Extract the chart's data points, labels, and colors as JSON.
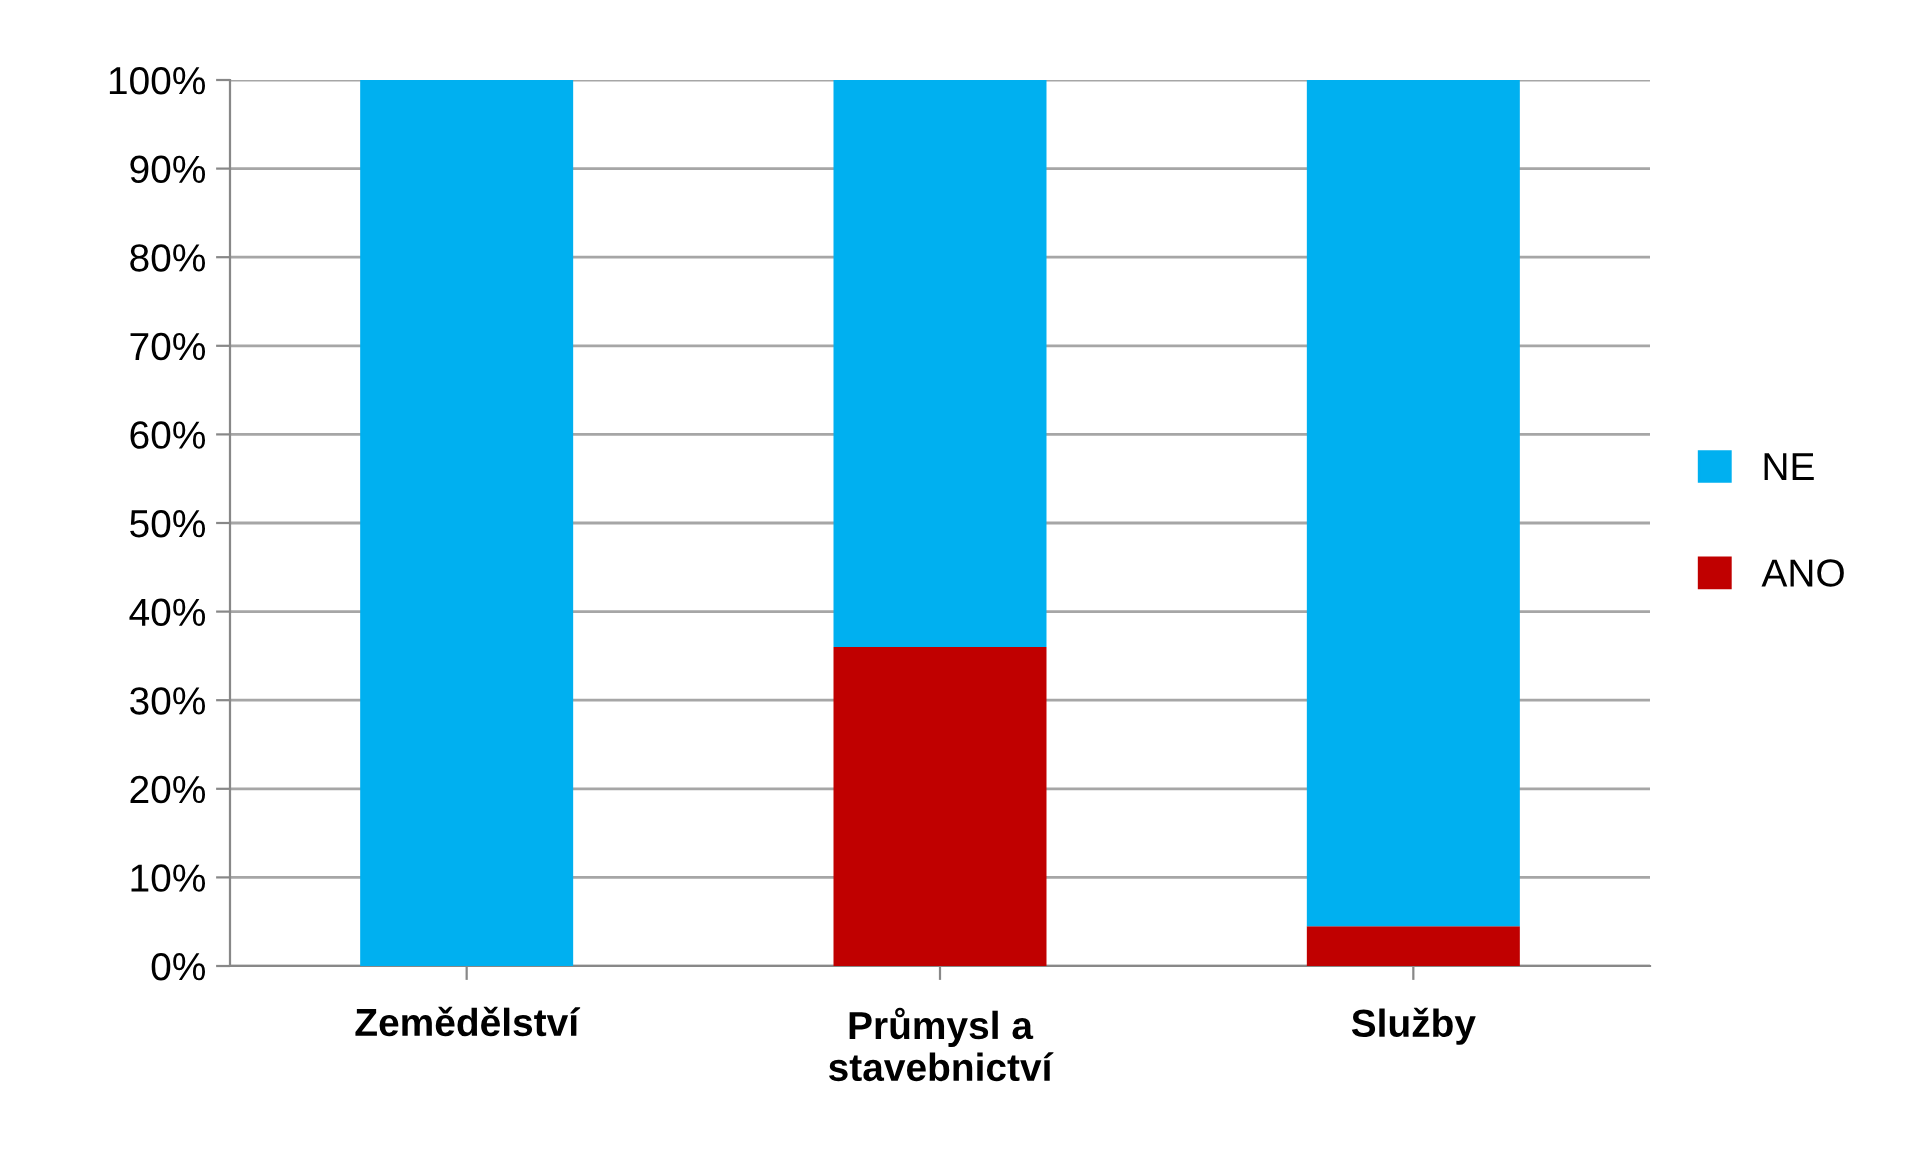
{
  "chart_data": {
    "type": "bar",
    "stacked": true,
    "categories": [
      "Zemědělství",
      "Průmysl a\nstavebnictví",
      "Služby"
    ],
    "series": [
      {
        "name": "ANO",
        "color": "#c00000",
        "values": [
          0,
          36,
          4.5
        ]
      },
      {
        "name": "NE",
        "color": "#00b0f0",
        "values": [
          100,
          64,
          95.5
        ]
      }
    ],
    "ylim": [
      0,
      100
    ],
    "yticks": [
      {
        "value": 0,
        "label": "0%"
      },
      {
        "value": 10,
        "label": "10%"
      },
      {
        "value": 20,
        "label": "20%"
      },
      {
        "value": 30,
        "label": "30%"
      },
      {
        "value": 40,
        "label": "40%"
      },
      {
        "value": 50,
        "label": "50%"
      },
      {
        "value": 60,
        "label": "60%"
      },
      {
        "value": 70,
        "label": "70%"
      },
      {
        "value": 80,
        "label": "80%"
      },
      {
        "value": 90,
        "label": "90%"
      },
      {
        "value": 100,
        "label": "100%"
      }
    ],
    "grid": "y",
    "legend": "right"
  }
}
